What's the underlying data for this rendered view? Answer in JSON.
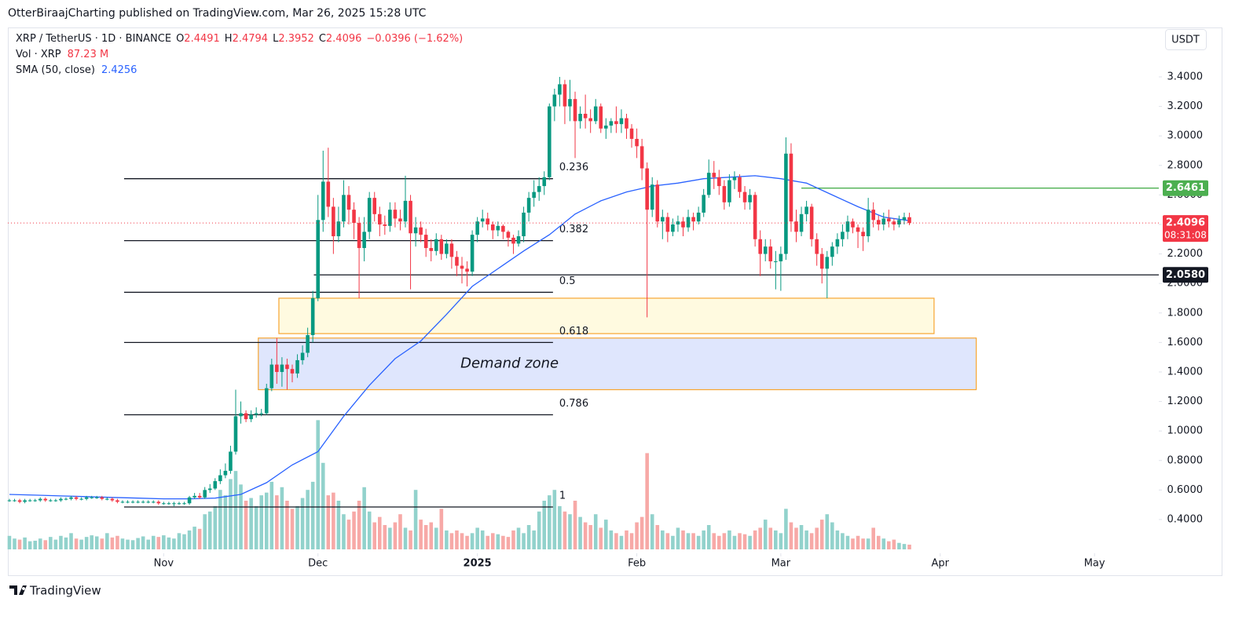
{
  "chart_data": {
    "type": "candlestick",
    "header": "OtterBiraajCharting published on TradingView.com, Mar 26, 2025 15:28 UTC",
    "symbol": "XRP / TetherUS · 1D · BINANCE",
    "legend_keys": [
      "O",
      "H",
      "L",
      "C"
    ],
    "change": "−0.0396 (−1.62%)",
    "volume_name": "Vol · XRP",
    "volume_legend": "87.23 M",
    "currency": "USDT",
    "countdown": "08:31:08",
    "branding": "TradingView",
    "up_color": "#089981",
    "down_color": "#f23645",
    "volume_up_color": "#92d2cc",
    "volume_down_color": "#f7a9a7",
    "xlim": [
      -0.3,
      223.5
    ],
    "xticks": [
      {
        "value": 30,
        "label": "Nov"
      },
      {
        "value": 60,
        "label": "Dec"
      },
      {
        "value": 91,
        "label": "2025"
      },
      {
        "value": 122,
        "label": "Feb"
      },
      {
        "value": 150,
        "label": "Mar"
      },
      {
        "value": 181,
        "label": "Apr"
      },
      {
        "value": 211,
        "label": "May"
      }
    ],
    "ylim": [
      0.171,
      3.735
    ],
    "yticks": [
      {
        "value": 0.4,
        "label": "0.4000"
      },
      {
        "value": 0.6,
        "label": "0.6000"
      },
      {
        "value": 0.8,
        "label": "0.8000"
      },
      {
        "value": 1.0,
        "label": "1.0000"
      },
      {
        "value": 1.2,
        "label": "1.2000"
      },
      {
        "value": 1.4,
        "label": "1.4000"
      },
      {
        "value": 1.6,
        "label": "1.6000"
      },
      {
        "value": 1.8,
        "label": "1.8000"
      },
      {
        "value": 2.0,
        "label": "2.0000"
      },
      {
        "value": 2.2,
        "label": "2.2000"
      },
      {
        "value": 2.4,
        "label": "2.4000"
      },
      {
        "value": 2.6,
        "label": "2.6000"
      },
      {
        "value": 2.8,
        "label": "2.8000"
      },
      {
        "value": 3.0,
        "label": "3.0000"
      },
      {
        "value": 3.2,
        "label": "3.2000"
      },
      {
        "value": 3.4,
        "label": "3.4000"
      }
    ],
    "volume_ylim": [
      0,
      4500
    ],
    "open": [
      0.53,
      0.53,
      0.53,
      0.52,
      0.53,
      0.53,
      0.53,
      0.54,
      0.53,
      0.53,
      0.53,
      0.54,
      0.54,
      0.55,
      0.54,
      0.54,
      0.55,
      0.55,
      0.55,
      0.54,
      0.54,
      0.53,
      0.52,
      0.52,
      0.52,
      0.52,
      0.52,
      0.52,
      0.52,
      0.52,
      0.51,
      0.51,
      0.51,
      0.51,
      0.51,
      0.51,
      0.55,
      0.56,
      0.55,
      0.6,
      0.61,
      0.66,
      0.7,
      0.73,
      0.86,
      1.1,
      1.12,
      1.08,
      1.11,
      1.12,
      1.12,
      1.29,
      1.45,
      1.4,
      1.45,
      1.42,
      1.39,
      1.48,
      1.53,
      1.65,
      1.9,
      2.43,
      2.69,
      2.52,
      2.32,
      2.42,
      2.6,
      2.5,
      2.41,
      2.24,
      2.35,
      2.58,
      2.47,
      2.4,
      2.39,
      2.5,
      2.44,
      2.42,
      2.56,
      2.34,
      2.38,
      2.33,
      2.24,
      2.22,
      2.3,
      2.2,
      2.27,
      2.18,
      2.12,
      2.1,
      2.08,
      2.33,
      2.42,
      2.44,
      2.4,
      2.36,
      2.39,
      2.35,
      2.31,
      2.27,
      2.32,
      2.48,
      2.58,
      2.62,
      2.66,
      2.72,
      3.2,
      3.28,
      3.35,
      3.2,
      3.25,
      3.1,
      3.15,
      3.12,
      3.1,
      3.2,
      3.05,
      3.07,
      3.1,
      3.08,
      3.12,
      3.05,
      2.98,
      2.93,
      2.78,
      2.5,
      2.67,
      2.42,
      2.45,
      2.35,
      2.4,
      2.42,
      2.38,
      2.45,
      2.42,
      2.48,
      2.6,
      2.75,
      2.72,
      2.66,
      2.55,
      2.7,
      2.72,
      2.62,
      2.55,
      2.6,
      2.3,
      2.2,
      2.25,
      2.15,
      2.15,
      2.2,
      2.88,
      2.42,
      2.35,
      2.47,
      2.52,
      2.3,
      2.2,
      2.1,
      2.18,
      2.25,
      2.3,
      2.35,
      2.42,
      2.38,
      2.35,
      2.32,
      2.5,
      2.43,
      2.4,
      2.44,
      2.42,
      2.4,
      2.43,
      2.4491
    ],
    "high": [
      0.54,
      0.54,
      0.54,
      0.54,
      0.54,
      0.54,
      0.55,
      0.55,
      0.54,
      0.54,
      0.55,
      0.55,
      0.56,
      0.56,
      0.55,
      0.56,
      0.56,
      0.56,
      0.56,
      0.55,
      0.55,
      0.54,
      0.53,
      0.53,
      0.53,
      0.53,
      0.53,
      0.53,
      0.53,
      0.53,
      0.52,
      0.52,
      0.52,
      0.52,
      0.52,
      0.56,
      0.58,
      0.58,
      0.62,
      0.64,
      0.68,
      0.74,
      0.78,
      0.9,
      1.28,
      1.2,
      1.14,
      1.14,
      1.16,
      1.15,
      1.32,
      1.49,
      1.63,
      1.5,
      1.49,
      1.45,
      1.52,
      1.58,
      1.7,
      1.95,
      2.6,
      2.9,
      2.92,
      2.58,
      2.52,
      2.7,
      2.66,
      2.55,
      2.45,
      2.45,
      2.62,
      2.62,
      2.52,
      2.46,
      2.55,
      2.55,
      2.5,
      2.73,
      2.6,
      2.45,
      2.42,
      2.37,
      2.3,
      2.34,
      2.33,
      2.3,
      2.3,
      2.22,
      2.18,
      2.15,
      2.36,
      2.45,
      2.5,
      2.48,
      2.42,
      2.42,
      2.4,
      2.36,
      2.33,
      2.36,
      2.52,
      2.62,
      2.7,
      2.72,
      2.76,
      3.22,
      3.32,
      3.4,
      3.38,
      3.38,
      3.3,
      3.2,
      3.28,
      3.18,
      3.25,
      3.22,
      3.12,
      3.12,
      3.2,
      3.18,
      3.15,
      3.08,
      3.05,
      2.98,
      2.82,
      2.72,
      2.7,
      2.5,
      2.48,
      2.44,
      2.46,
      2.45,
      2.5,
      2.48,
      2.52,
      2.64,
      2.84,
      2.83,
      2.77,
      2.7,
      2.74,
      2.76,
      2.74,
      2.66,
      2.64,
      2.62,
      2.36,
      2.3,
      2.3,
      2.22,
      2.25,
      2.99,
      2.95,
      2.5,
      2.52,
      2.56,
      2.54,
      2.34,
      2.24,
      2.22,
      2.28,
      2.34,
      2.4,
      2.46,
      2.44,
      2.4,
      2.38,
      2.58,
      2.55,
      2.46,
      2.48,
      2.5,
      2.44,
      2.46,
      2.48,
      2.4794
    ],
    "low": [
      0.52,
      0.52,
      0.51,
      0.51,
      0.52,
      0.52,
      0.52,
      0.52,
      0.52,
      0.52,
      0.52,
      0.53,
      0.53,
      0.53,
      0.53,
      0.53,
      0.54,
      0.54,
      0.53,
      0.53,
      0.52,
      0.51,
      0.51,
      0.51,
      0.51,
      0.51,
      0.51,
      0.51,
      0.51,
      0.5,
      0.5,
      0.5,
      0.49,
      0.5,
      0.5,
      0.5,
      0.54,
      0.54,
      0.54,
      0.58,
      0.6,
      0.64,
      0.68,
      0.71,
      0.84,
      1.05,
      1.06,
      1.06,
      1.09,
      1.1,
      1.11,
      1.27,
      1.32,
      1.3,
      1.28,
      1.33,
      1.36,
      1.45,
      1.5,
      1.6,
      1.88,
      2.35,
      2.45,
      2.2,
      2.28,
      2.38,
      2.4,
      2.3,
      1.9,
      2.15,
      2.3,
      2.42,
      2.32,
      2.33,
      2.35,
      2.38,
      2.36,
      2.38,
      1.96,
      2.25,
      2.28,
      2.18,
      2.15,
      2.19,
      2.16,
      2.17,
      2.1,
      2.05,
      2.0,
      1.98,
      2.05,
      2.28,
      2.38,
      2.36,
      2.3,
      2.32,
      2.3,
      2.25,
      2.2,
      2.25,
      2.28,
      2.42,
      2.52,
      2.56,
      2.6,
      2.7,
      3.1,
      3.2,
      3.08,
      3.1,
      2.85,
      3.05,
      3.05,
      3.02,
      3.08,
      3.02,
      2.98,
      3.02,
      3.02,
      3.02,
      2.98,
      2.92,
      2.85,
      2.7,
      1.77,
      2.45,
      2.38,
      2.3,
      2.28,
      2.32,
      2.35,
      2.32,
      2.35,
      2.36,
      2.4,
      2.45,
      2.58,
      2.64,
      2.6,
      2.5,
      2.52,
      2.64,
      2.58,
      2.5,
      2.5,
      2.25,
      2.05,
      2.15,
      2.1,
      1.96,
      1.95,
      2.16,
      2.35,
      2.28,
      2.32,
      2.42,
      2.25,
      2.12,
      2.0,
      1.9,
      2.12,
      2.2,
      2.25,
      2.3,
      2.34,
      2.24,
      2.22,
      2.28,
      2.38,
      2.36,
      2.36,
      2.38,
      2.36,
      2.38,
      2.4,
      2.3952
    ],
    "close": [
      0.53,
      0.53,
      0.52,
      0.53,
      0.53,
      0.53,
      0.54,
      0.53,
      0.53,
      0.53,
      0.54,
      0.54,
      0.55,
      0.54,
      0.54,
      0.55,
      0.55,
      0.55,
      0.54,
      0.54,
      0.53,
      0.52,
      0.52,
      0.52,
      0.52,
      0.52,
      0.52,
      0.52,
      0.52,
      0.51,
      0.51,
      0.51,
      0.51,
      0.51,
      0.51,
      0.55,
      0.56,
      0.55,
      0.6,
      0.61,
      0.66,
      0.7,
      0.73,
      0.86,
      1.1,
      1.12,
      1.08,
      1.11,
      1.12,
      1.12,
      1.29,
      1.45,
      1.4,
      1.45,
      1.42,
      1.39,
      1.48,
      1.53,
      1.65,
      1.9,
      2.43,
      2.69,
      2.52,
      2.32,
      2.42,
      2.6,
      2.5,
      2.41,
      2.24,
      2.35,
      2.58,
      2.47,
      2.4,
      2.39,
      2.5,
      2.44,
      2.42,
      2.56,
      2.34,
      2.38,
      2.33,
      2.24,
      2.22,
      2.3,
      2.2,
      2.27,
      2.18,
      2.12,
      2.1,
      2.08,
      2.33,
      2.42,
      2.44,
      2.4,
      2.36,
      2.39,
      2.35,
      2.31,
      2.27,
      2.32,
      2.48,
      2.58,
      2.62,
      2.66,
      2.72,
      3.2,
      3.28,
      3.35,
      3.2,
      3.25,
      3.1,
      3.15,
      3.12,
      3.1,
      3.2,
      3.05,
      3.07,
      3.1,
      3.08,
      3.12,
      3.05,
      2.98,
      2.93,
      2.78,
      2.5,
      2.67,
      2.42,
      2.45,
      2.35,
      2.4,
      2.42,
      2.38,
      2.45,
      2.42,
      2.48,
      2.6,
      2.75,
      2.72,
      2.66,
      2.55,
      2.7,
      2.72,
      2.62,
      2.55,
      2.6,
      2.3,
      2.2,
      2.25,
      2.15,
      2.15,
      2.2,
      2.88,
      2.42,
      2.35,
      2.47,
      2.52,
      2.3,
      2.2,
      2.1,
      2.18,
      2.25,
      2.3,
      2.35,
      2.42,
      2.38,
      2.35,
      2.32,
      2.5,
      2.43,
      2.4,
      2.44,
      2.42,
      2.4,
      2.43,
      2.4491,
      2.4096
    ],
    "volume": [
      250,
      200,
      180,
      220,
      150,
      160,
      200,
      170,
      230,
      180,
      250,
      220,
      300,
      200,
      180,
      230,
      260,
      240,
      200,
      300,
      220,
      250,
      200,
      180,
      170,
      210,
      240,
      180,
      250,
      230,
      260,
      220,
      200,
      300,
      280,
      350,
      420,
      380,
      650,
      700,
      800,
      1100,
      1000,
      1300,
      1450,
      1200,
      900,
      950,
      800,
      1000,
      1050,
      1250,
      1000,
      1150,
      900,
      750,
      800,
      950,
      1100,
      1250,
      2390,
      1600,
      1000,
      1050,
      900,
      650,
      550,
      700,
      900,
      1150,
      700,
      500,
      600,
      450,
      400,
      500,
      650,
      400,
      350,
      1100,
      550,
      450,
      500,
      400,
      750,
      350,
      300,
      350,
      300,
      250,
      300,
      400,
      350,
      250,
      300,
      280,
      250,
      230,
      350,
      400,
      300,
      450,
      350,
      700,
      900,
      1000,
      1100,
      800,
      700,
      650,
      900,
      600,
      500,
      450,
      650,
      400,
      550,
      350,
      300,
      250,
      350,
      300,
      500,
      600,
      1780,
      650,
      450,
      350,
      300,
      250,
      400,
      350,
      300,
      300,
      250,
      350,
      450,
      300,
      250,
      300,
      350,
      250,
      300,
      280,
      250,
      350,
      400,
      550,
      400,
      350,
      300,
      750,
      500,
      400,
      450,
      350,
      300,
      400,
      550,
      650,
      500,
      350,
      300,
      250,
      200,
      250,
      200,
      200,
      400,
      250,
      200,
      150,
      180,
      120,
      100,
      87.23
    ],
    "sma": {
      "name": "SMA (50, close)",
      "color": "#2962ff",
      "x": [
        0,
        5,
        10,
        15,
        20,
        25,
        30,
        35,
        40,
        45,
        50,
        55,
        60,
        65,
        70,
        75,
        80,
        85,
        90,
        95,
        100,
        105,
        110,
        115,
        120,
        125,
        130,
        135,
        140,
        145,
        150,
        155,
        160,
        165,
        170,
        175
      ],
      "values": [
        0.57,
        0.565,
        0.56,
        0.555,
        0.55,
        0.545,
        0.54,
        0.54,
        0.545,
        0.57,
        0.65,
        0.77,
        0.86,
        1.1,
        1.31,
        1.49,
        1.61,
        1.79,
        1.98,
        2.1,
        2.22,
        2.33,
        2.47,
        2.56,
        2.62,
        2.66,
        2.68,
        2.71,
        2.72,
        2.73,
        2.71,
        2.68,
        2.6,
        2.52,
        2.45,
        2.4256
      ]
    },
    "fib": {
      "x": [
        22.3,
        105.7
      ],
      "color": "#131722",
      "levels": [
        {
          "label": "0.236",
          "price": 2.71
        },
        {
          "label": "0.382",
          "price": 2.29
        },
        {
          "label": "0.5",
          "price": 1.94
        },
        {
          "label": "0.618",
          "price": 1.6
        },
        {
          "label": "0.786",
          "price": 1.11
        },
        {
          "label": "1",
          "price": 0.485
        }
      ]
    },
    "hlines": [
      {
        "price": {
          "value": 2.058,
          "label": "2.0580"
        },
        "from": 59.2,
        "color": "#131722"
      },
      {
        "price": 2.6461,
        "from": 154,
        "color": "#4caf50"
      }
    ],
    "zones": [
      {
        "x": [
          52.4,
          179.8
        ],
        "price": [
          1.66,
          1.9
        ],
        "fill": "#fff7cc",
        "stroke": "#f7a531"
      },
      {
        "x": [
          48.4,
          188
        ],
        "price": [
          1.28,
          1.63
        ],
        "fill": "#c9d6fb",
        "stroke": "#f7a531",
        "label": "Demand zone"
      }
    ]
  }
}
